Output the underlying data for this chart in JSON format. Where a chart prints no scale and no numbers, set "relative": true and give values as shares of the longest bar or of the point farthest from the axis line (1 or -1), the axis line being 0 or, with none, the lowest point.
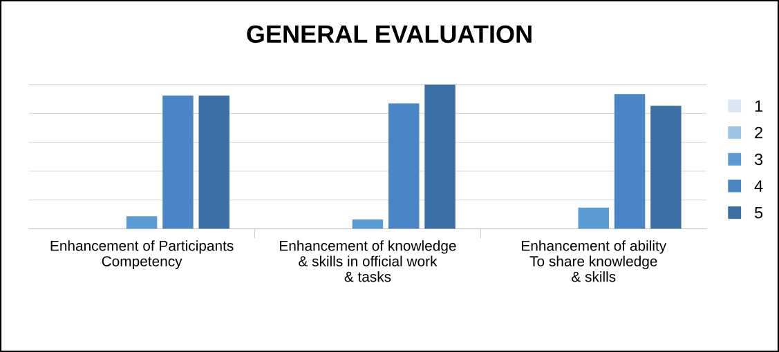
{
  "chart_data": {
    "type": "bar",
    "title": "GENERAL EVALUATION",
    "relative": true,
    "grid": "y",
    "legend": "right",
    "categories": [
      "Enhancement of Participants\nCompetency",
      "Enhancement of knowledge\n& skills in official work\n& tasks",
      "Enhancement of ability\nTo share knowledge\n& skills"
    ],
    "series": [
      {
        "name": "1",
        "color": "#dce6f2",
        "values": [
          0,
          0,
          0
        ]
      },
      {
        "name": "2",
        "color": "#9dc3e6",
        "values": [
          0,
          0,
          0
        ]
      },
      {
        "name": "3",
        "color": "#5b9bd5",
        "values": [
          0.087,
          0.065,
          0.147
        ]
      },
      {
        "name": "4",
        "color": "#4a86c5",
        "values": [
          0.924,
          0.87,
          0.935
        ]
      },
      {
        "name": "5",
        "color": "#3b6fa6",
        "values": [
          0.924,
          1.0,
          0.853
        ]
      }
    ]
  }
}
